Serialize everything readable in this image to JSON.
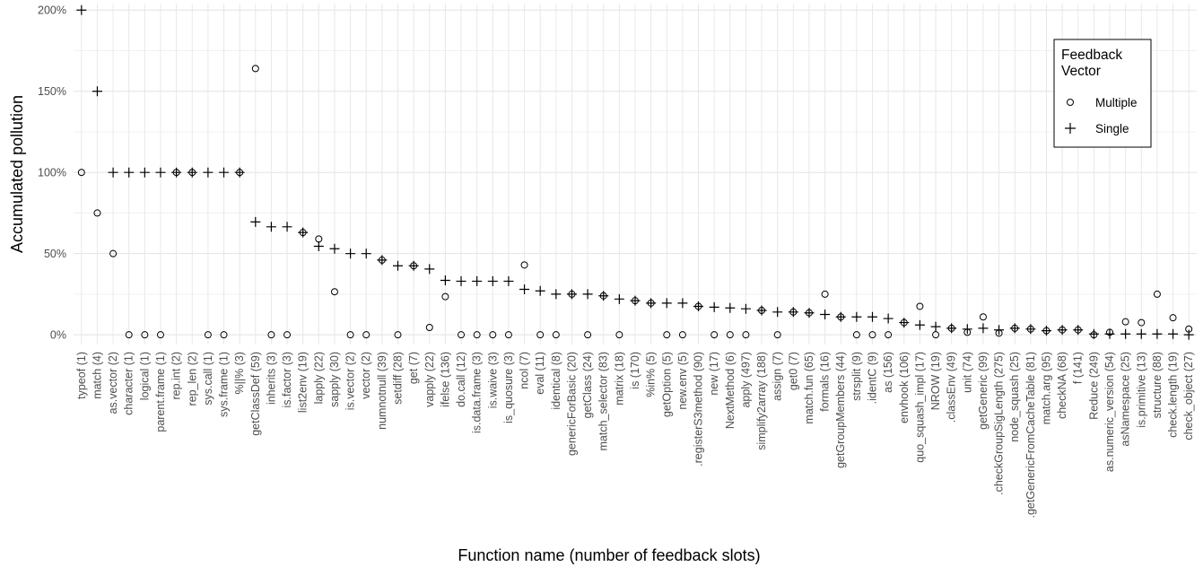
{
  "chart_data": {
    "type": "scatter",
    "xlabel": "Function name (number of feedback slots)",
    "ylabel": "Accumulated pollution",
    "ylim": [
      -0.06,
      2.04
    ],
    "yticks": [
      0,
      0.5,
      1.0,
      1.5,
      2.0
    ],
    "ytick_labels": [
      "0%",
      "50%",
      "100%",
      "150%",
      "200%"
    ],
    "grid": true,
    "legend": {
      "title_lines": [
        "Feedback",
        "Vector"
      ],
      "placement": "top-right",
      "entries": [
        {
          "name": "Multiple",
          "marker": "circle"
        },
        {
          "name": "Single",
          "marker": "plus"
        }
      ]
    },
    "categories": [
      "typeof (1)",
      "match (4)",
      "as.vector (2)",
      "character (1)",
      "logical (1)",
      "parent.frame (1)",
      "rep.int (2)",
      "rep_len (2)",
      "sys.call (1)",
      "sys.frame (1)",
      "%||% (3)",
      "getClassDef (59)",
      "inherits (3)",
      "is.factor (3)",
      "list2env (19)",
      "lapply (22)",
      "sapply (30)",
      "is.vector (2)",
      "vector (2)",
      "numnotnull (39)",
      "setdiff (28)",
      "get (7)",
      "vapply (22)",
      "ifelse (136)",
      "do.call (12)",
      "is.data.frame (3)",
      "is.waive (3)",
      "is_quosure (3)",
      "ncol (7)",
      "eval (11)",
      "identical (8)",
      "genericForBasic (20)",
      "getClass (24)",
      "match_selector (83)",
      "matrix (18)",
      "is (170)",
      "%in% (5)",
      "getOption (5)",
      "new.env (5)",
      ".registerS3method (90)",
      "new (17)",
      "NextMethod (6)",
      "apply (497)",
      "simplify2array (188)",
      "assign (7)",
      "get0 (7)",
      "match.fun (65)",
      "formals (16)",
      "getGroupMembers (44)",
      "strsplit (9)",
      ".identC (9)",
      "as (156)",
      "envhook (106)",
      "quo_squash_impl (17)",
      "NROW (19)",
      ".classEnv (49)",
      "unit (74)",
      "getGeneric (99)",
      ".checkGroupSigLength (275)",
      "node_squash (25)",
      ".getGenericFromCacheTable (81)",
      "match.arg (95)",
      "checkNA (68)",
      "f (141)",
      "Reduce (249)",
      "as.numeric_version (54)",
      "asNamespace (25)",
      "is.primitive (13)",
      "structure (88)",
      "check.length (19)",
      "check_object (27)"
    ],
    "series": [
      {
        "name": "Multiple",
        "marker": "circle",
        "values": [
          1.0,
          0.75,
          0.5,
          0,
          0,
          0,
          1.0,
          1.0,
          0,
          0,
          1.0,
          1.64,
          0,
          0,
          0.63,
          0.59,
          0.265,
          0,
          0,
          0.46,
          0,
          0.425,
          0.045,
          0.235,
          0,
          0,
          0,
          0,
          0.43,
          0,
          0,
          0.25,
          0,
          0.24,
          0,
          0.21,
          0.195,
          0,
          0,
          0.175,
          0,
          0,
          0,
          0.15,
          0,
          0.14,
          0.135,
          0.25,
          0.11,
          0,
          0,
          0,
          0.075,
          0.175,
          0,
          0.04,
          0.015,
          0.11,
          0.01,
          0.04,
          0.035,
          0.025,
          0.03,
          0.03,
          0,
          0.015,
          0.08,
          0.075,
          0.25,
          0.105,
          0.035
        ]
      },
      {
        "name": "Single",
        "marker": "plus",
        "values": [
          2.0,
          1.5,
          1.0,
          1.0,
          1.0,
          1.0,
          1.0,
          1.0,
          1.0,
          1.0,
          1.0,
          0.695,
          0.665,
          0.665,
          0.63,
          0.545,
          0.53,
          0.5,
          0.5,
          0.46,
          0.425,
          0.425,
          0.405,
          0.335,
          0.33,
          0.33,
          0.33,
          0.33,
          0.28,
          0.27,
          0.25,
          0.25,
          0.25,
          0.24,
          0.22,
          0.21,
          0.195,
          0.195,
          0.195,
          0.175,
          0.17,
          0.165,
          0.16,
          0.15,
          0.14,
          0.14,
          0.135,
          0.125,
          0.11,
          0.11,
          0.11,
          0.1,
          0.075,
          0.06,
          0.05,
          0.04,
          0.035,
          0.04,
          0.03,
          0.04,
          0.035,
          0.025,
          0.03,
          0.03,
          0.005,
          0.005,
          0.005,
          0.005,
          0.005,
          0.005,
          0.0
        ]
      }
    ]
  }
}
